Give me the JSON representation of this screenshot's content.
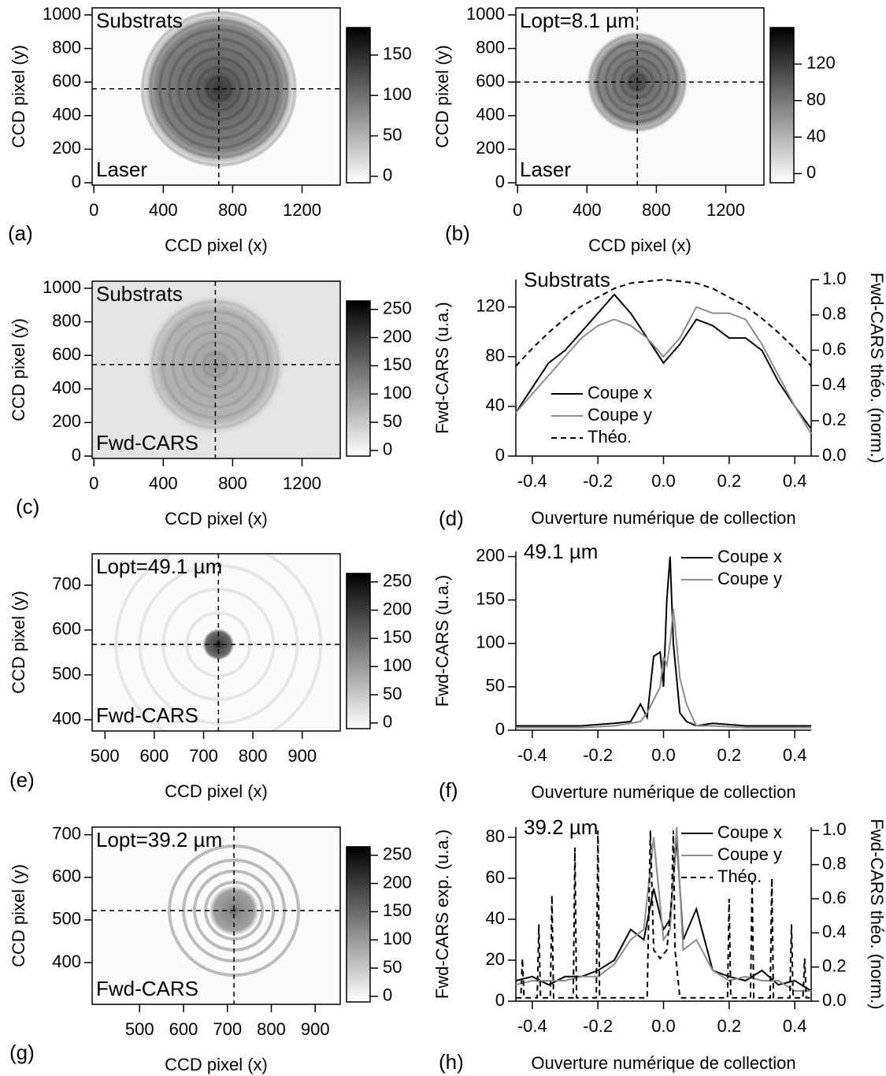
{
  "chart_data": [
    {
      "type": "image",
      "panel": "(a)",
      "annotations": [
        "Substrats",
        "Laser"
      ],
      "xlabel": "CCD pixel (x)",
      "ylabel": "CCD pixel (y)",
      "xlim": [
        -10,
        1420
      ],
      "ylim": [
        -14,
        1042
      ],
      "xticks": [
        0,
        400,
        800,
        1200
      ],
      "yticks": [
        0,
        200,
        400,
        600,
        800,
        1000
      ],
      "crosshair": {
        "x": 720,
        "y": 560
      },
      "colorbar": {
        "lim": [
          -8,
          184
        ],
        "ticks": [
          0,
          50,
          100,
          150
        ]
      }
    },
    {
      "type": "image",
      "panel": "(b)",
      "annotations": [
        "Lopt=8.1 µm",
        "Laser"
      ],
      "xlabel": "CCD pixel (x)",
      "ylabel": "CCD pixel (y)",
      "xlim": [
        -10,
        1420
      ],
      "ylim": [
        -14,
        1042
      ],
      "xticks": [
        0,
        400,
        800,
        1200
      ],
      "yticks": [
        0,
        200,
        400,
        600,
        800,
        1000
      ],
      "crosshair": {
        "x": 690,
        "y": 600
      },
      "colorbar": {
        "lim": [
          -10,
          160
        ],
        "ticks": [
          0,
          40,
          80,
          120
        ]
      }
    },
    {
      "type": "image",
      "panel": "(c)",
      "annotations": [
        "Substrats",
        "Fwd-CARS"
      ],
      "xlabel": "CCD pixel (x)",
      "ylabel": "CCD pixel (y)",
      "xlim": [
        -10,
        1420
      ],
      "ylim": [
        -14,
        1042
      ],
      "xticks": [
        0,
        400,
        800,
        1200
      ],
      "yticks": [
        0,
        200,
        400,
        600,
        800,
        1000
      ],
      "crosshair": {
        "x": 700,
        "y": 545
      },
      "colorbar": {
        "lim": [
          -10,
          265
        ],
        "ticks": [
          0,
          50,
          100,
          150,
          200,
          250
        ]
      }
    },
    {
      "type": "line",
      "panel": "(d)",
      "annotation": "Substrats",
      "xlabel": "Ouverture numérique de collection",
      "ylabel": "Fwd-CARS (u.a.)",
      "y2label": "Fwd-CARS théo. (norm.)",
      "legend": "lower-left",
      "xlim": [
        -0.45,
        0.45
      ],
      "ylim": [
        0,
        142
      ],
      "y2lim": [
        0,
        1.0
      ],
      "xticks": [
        -0.4,
        -0.2,
        {
          "value": 0,
          "label": "0.0"
        },
        0.2,
        0.4
      ],
      "yticks": [
        40,
        80,
        120,
        0
      ],
      "y2ticks": [
        {
          "value": 0,
          "label": "0.0"
        },
        0.2,
        0.4,
        0.6,
        0.8,
        {
          "value": 1,
          "label": "1.0"
        }
      ],
      "series": [
        {
          "name": "Coupe x",
          "color": "#000000",
          "x": [
            -0.45,
            -0.4,
            -0.35,
            -0.3,
            -0.25,
            -0.2,
            -0.15,
            -0.1,
            -0.05,
            0,
            0.05,
            0.1,
            0.15,
            0.2,
            0.25,
            0.3,
            0.35,
            0.4,
            0.45
          ],
          "values": [
            35,
            55,
            75,
            85,
            100,
            115,
            130,
            115,
            95,
            75,
            90,
            110,
            105,
            95,
            95,
            85,
            60,
            40,
            22
          ]
        },
        {
          "name": "Coupe y",
          "color": "#8c8c8c",
          "x": [
            -0.45,
            -0.4,
            -0.35,
            -0.3,
            -0.25,
            -0.2,
            -0.15,
            -0.1,
            -0.05,
            0,
            0.05,
            0.1,
            0.15,
            0.2,
            0.25,
            0.3,
            0.35,
            0.4,
            0.45
          ],
          "values": [
            35,
            50,
            65,
            80,
            95,
            105,
            110,
            105,
            95,
            80,
            95,
            120,
            115,
            115,
            110,
            90,
            65,
            40,
            18
          ]
        },
        {
          "name": "Théo.",
          "color": "#000000",
          "dashed": true,
          "axis": "y2",
          "x": [
            -0.45,
            -0.4,
            -0.35,
            -0.3,
            -0.25,
            -0.2,
            -0.15,
            -0.1,
            -0.05,
            0,
            0.05,
            0.1,
            0.15,
            0.2,
            0.25,
            0.3,
            0.35,
            0.4,
            0.45
          ],
          "values": [
            0.51,
            0.61,
            0.7,
            0.78,
            0.85,
            0.9,
            0.95,
            0.98,
            0.99,
            1.0,
            0.99,
            0.98,
            0.95,
            0.9,
            0.85,
            0.78,
            0.7,
            0.61,
            0.51
          ]
        }
      ]
    },
    {
      "type": "image",
      "panel": "(e)",
      "annotations": [
        "Lopt=49.1 µm",
        "Fwd-CARS"
      ],
      "xlabel": "CCD pixel (x)",
      "ylabel": "CCD pixel (y)",
      "xlim": [
        474,
        977
      ],
      "ylim": [
        375,
        770
      ],
      "xticks": [
        500,
        600,
        700,
        800,
        900
      ],
      "yticks": [
        400,
        500,
        600,
        700
      ],
      "crosshair": {
        "x": 730,
        "y": 568
      },
      "colorbar": {
        "lim": [
          -10,
          265
        ],
        "ticks": [
          0,
          50,
          100,
          150,
          200,
          250
        ]
      }
    },
    {
      "type": "line",
      "panel": "(f)",
      "annotation": "49.1 µm",
      "xlabel": "Ouverture numérique de collection",
      "ylabel": "Fwd-CARS (u.a.)",
      "legend": "upper-right",
      "xlim": [
        -0.45,
        0.45
      ],
      "ylim": [
        0,
        206
      ],
      "xticks": [
        -0.4,
        -0.2,
        {
          "value": 0,
          "label": "0.0"
        },
        0.2,
        0.4
      ],
      "yticks": [
        0,
        50,
        100,
        150,
        200
      ],
      "series": [
        {
          "name": "Coupe x",
          "color": "#000000",
          "x": [
            -0.45,
            -0.35,
            -0.25,
            -0.15,
            -0.1,
            -0.07,
            -0.05,
            -0.03,
            -0.01,
            0,
            0.01,
            0.02,
            0.03,
            0.05,
            0.07,
            0.1,
            0.15,
            0.25,
            0.35,
            0.45
          ],
          "values": [
            5,
            5,
            5,
            8,
            10,
            30,
            15,
            85,
            90,
            50,
            150,
            200,
            100,
            20,
            10,
            5,
            8,
            5,
            5,
            5
          ]
        },
        {
          "name": "Coupe y",
          "color": "#8c8c8c",
          "x": [
            -0.45,
            -0.35,
            -0.25,
            -0.15,
            -0.1,
            -0.07,
            -0.05,
            -0.03,
            -0.01,
            0,
            0.01,
            0.02,
            0.03,
            0.05,
            0.07,
            0.1,
            0.15,
            0.25,
            0.35,
            0.45
          ],
          "values": [
            3,
            3,
            3,
            5,
            8,
            10,
            20,
            35,
            50,
            85,
            75,
            100,
            140,
            60,
            30,
            5,
            5,
            3,
            3,
            3
          ]
        }
      ]
    },
    {
      "type": "image",
      "panel": "(g)",
      "annotations": [
        "Lopt=39.2 µm",
        "Fwd-CARS"
      ],
      "xlabel": "CCD pixel (x)",
      "ylabel": "CCD pixel (y)",
      "xlim": [
        392,
        957
      ],
      "ylim": [
        302,
        718
      ],
      "xticks": [
        500,
        600,
        700,
        800,
        900
      ],
      "yticks": [
        400,
        500,
        600,
        700
      ],
      "crosshair": {
        "x": 715,
        "y": 522
      },
      "colorbar": {
        "lim": [
          -10,
          265
        ],
        "ticks": [
          0,
          50,
          100,
          150,
          200,
          250
        ]
      }
    },
    {
      "type": "line",
      "panel": "(h)",
      "annotation": "39.2 µm",
      "xlabel": "Ouverture numérique de collection",
      "ylabel": "Fwd-CARS exp. (u.a.)",
      "y2label": "Fwd-CARS théo. (norm.)",
      "legend": "upper-right",
      "xlim": [
        -0.45,
        0.45
      ],
      "ylim": [
        0,
        85
      ],
      "y2lim": [
        0,
        1.02
      ],
      "xticks": [
        -0.4,
        -0.2,
        {
          "value": 0,
          "label": "0.0"
        },
        0.2,
        0.4
      ],
      "yticks": [
        0,
        20,
        40,
        60,
        80
      ],
      "y2ticks": [
        {
          "value": 0,
          "label": "0.0"
        },
        0.2,
        0.4,
        0.6,
        0.8,
        {
          "value": 1,
          "label": "1.0"
        }
      ],
      "series": [
        {
          "name": "Coupe x",
          "color": "#000000",
          "x": [
            -0.45,
            -0.4,
            -0.35,
            -0.3,
            -0.25,
            -0.2,
            -0.15,
            -0.1,
            -0.06,
            -0.03,
            0,
            0.02,
            0.04,
            0.06,
            0.1,
            0.15,
            0.2,
            0.25,
            0.3,
            0.35,
            0.4,
            0.45
          ],
          "values": [
            10,
            12,
            8,
            12,
            12,
            15,
            20,
            35,
            30,
            55,
            35,
            40,
            80,
            30,
            45,
            15,
            12,
            10,
            15,
            8,
            10,
            5
          ]
        },
        {
          "name": "Coupe y",
          "color": "#8c8c8c",
          "x": [
            -0.45,
            -0.4,
            -0.35,
            -0.3,
            -0.25,
            -0.2,
            -0.15,
            -0.1,
            -0.06,
            -0.03,
            0,
            0.02,
            0.04,
            0.06,
            0.1,
            0.15,
            0.2,
            0.25,
            0.3,
            0.35,
            0.4,
            0.45
          ],
          "values": [
            8,
            10,
            10,
            10,
            12,
            12,
            18,
            30,
            35,
            80,
            30,
            35,
            85,
            25,
            30,
            15,
            10,
            12,
            10,
            10,
            5,
            5
          ]
        },
        {
          "name": "Théo.",
          "color": "#000000",
          "dashed": true,
          "axis": "y2",
          "x": [
            -0.45,
            -0.435,
            -0.43,
            -0.425,
            -0.385,
            -0.38,
            -0.375,
            -0.345,
            -0.34,
            -0.335,
            -0.275,
            -0.27,
            -0.265,
            -0.205,
            -0.2,
            -0.195,
            -0.05,
            -0.04,
            -0.03,
            -0.01,
            0.01,
            0.025,
            0.03,
            0.035,
            0.05,
            0.195,
            0.2,
            0.205,
            0.265,
            0.27,
            0.275,
            0.325,
            0.33,
            0.335,
            0.385,
            0.39,
            0.395,
            0.425,
            0.43,
            0.435,
            0.45
          ],
          "values": [
            0.02,
            0.02,
            0.25,
            0.02,
            0.02,
            0.45,
            0.02,
            0.02,
            0.62,
            0.02,
            0.02,
            0.9,
            0.02,
            0.02,
            1.0,
            0.02,
            0.02,
            1.0,
            0.3,
            0.25,
            0.3,
            0.6,
            1.0,
            0.3,
            0.02,
            0.02,
            0.6,
            0.02,
            0.02,
            0.7,
            0.02,
            0.02,
            0.72,
            0.02,
            0.02,
            0.45,
            0.02,
            0.02,
            0.25,
            0.02,
            0.02
          ]
        }
      ]
    }
  ]
}
